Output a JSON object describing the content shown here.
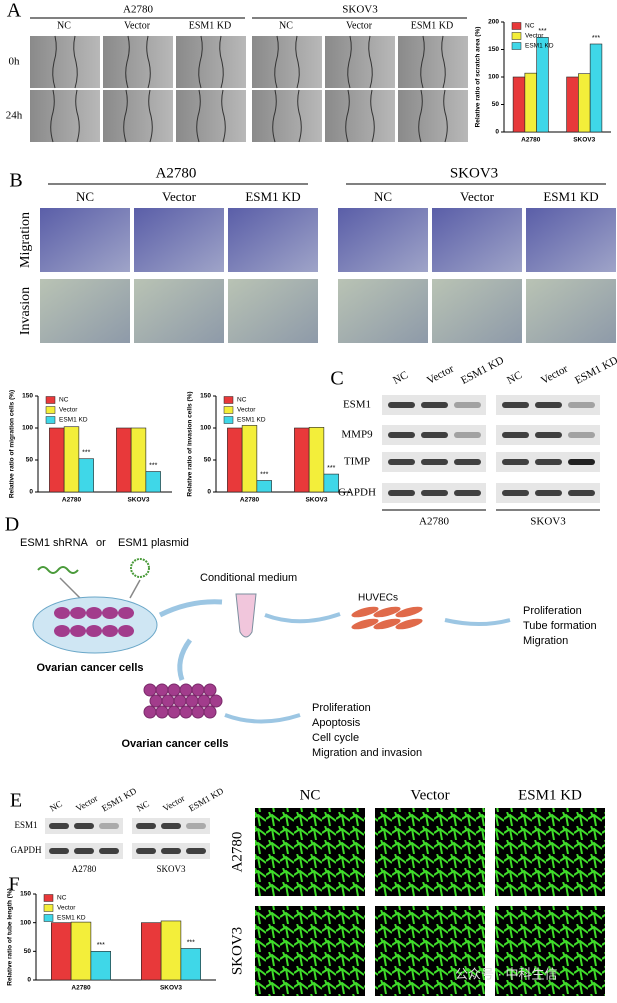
{
  "panels": {
    "a": {
      "label": "A",
      "groups": [
        "A2780",
        "SKOV3"
      ],
      "columns": [
        "NC",
        "Vector",
        "ESM1 KD"
      ],
      "rows": [
        "0h",
        "24h"
      ]
    },
    "b": {
      "label": "B",
      "groups": [
        "A2780",
        "SKOV3"
      ],
      "columns": [
        "NC",
        "Vector",
        "ESM1 KD"
      ],
      "rows": [
        "Migration",
        "Invasion"
      ]
    },
    "c": {
      "label": "C",
      "groups": [
        "A2780",
        "SKOV3"
      ],
      "columns": [
        "NC",
        "Vector",
        "ESM1 KD"
      ],
      "rows": [
        "ESM1",
        "MMP9",
        "TIMP",
        "GAPDH"
      ]
    },
    "d": {
      "label": "D",
      "agent_1": "ESM1 shRNA",
      "agent_join": "or",
      "agent_2": "ESM1 plasmid",
      "medium": "Conditional medium",
      "huvecs": "HUVECs",
      "huvec_effects": [
        "Proliferation",
        "Tube formation",
        "Migration"
      ],
      "cells": "Ovarian cancer cells",
      "cell_effects": [
        "Proliferation",
        "Apoptosis",
        "Cell cycle",
        "Migration and invasion"
      ]
    },
    "e": {
      "label": "E",
      "groups": [
        "A2780",
        "SKOV3"
      ],
      "columns": [
        "NC",
        "Vector",
        "ESM1 KD"
      ],
      "rows": [
        "ESM1",
        "GAPDH"
      ],
      "tube_columns": [
        "NC",
        "Vector",
        "ESM1 KD"
      ],
      "tube_rows": [
        "A2780",
        "SKOV3"
      ]
    },
    "f": {
      "label": "F"
    },
    "watermark": "公众号 · 中科生信"
  },
  "chart_data": [
    {
      "type": "bar",
      "y_label": "Relative ratio of scratch area (%)",
      "categories": [
        "A2780",
        "SKOV3"
      ],
      "series": [
        {
          "name": "NC",
          "color": "#e8393a",
          "values": [
            100,
            100
          ]
        },
        {
          "name": "Vector",
          "color": "#f3ee3a",
          "values": [
            107,
            106
          ]
        },
        {
          "name": "ESM1 KD",
          "color": "#3fd7e8",
          "values": [
            172,
            160
          ]
        }
      ],
      "significance": [
        "***",
        "***"
      ],
      "ylim": [
        0,
        200
      ],
      "yticks": [
        0,
        50,
        100,
        150,
        200
      ]
    },
    {
      "type": "bar",
      "y_label": "Relative ratio of migration cells (%)",
      "categories": [
        "A2780",
        "SKOV3"
      ],
      "series": [
        {
          "name": "NC",
          "color": "#e8393a",
          "values": [
            100,
            100
          ]
        },
        {
          "name": "Vector",
          "color": "#f3ee3a",
          "values": [
            102,
            100
          ]
        },
        {
          "name": "ESM1 KD",
          "color": "#3fd7e8",
          "values": [
            52,
            32
          ]
        }
      ],
      "significance": [
        "***",
        "***"
      ],
      "ylim": [
        0,
        150
      ],
      "yticks": [
        0,
        50,
        100,
        150
      ]
    },
    {
      "type": "bar",
      "y_label": "Relative ratio of invasion cells (%)",
      "categories": [
        "A2780",
        "SKOV3"
      ],
      "series": [
        {
          "name": "NC",
          "color": "#e8393a",
          "values": [
            100,
            100
          ]
        },
        {
          "name": "Vector",
          "color": "#f3ee3a",
          "values": [
            104,
            101
          ]
        },
        {
          "name": "ESM1 KD",
          "color": "#3fd7e8",
          "values": [
            18,
            28
          ]
        }
      ],
      "significance": [
        "***",
        "***"
      ],
      "ylim": [
        0,
        150
      ],
      "yticks": [
        0,
        50,
        100,
        150
      ]
    },
    {
      "type": "bar",
      "y_label": "Relative ratio of tube length (%)",
      "categories": [
        "A2780",
        "SKOV3"
      ],
      "series": [
        {
          "name": "NC",
          "color": "#e8393a",
          "values": [
            100,
            100
          ]
        },
        {
          "name": "Vector",
          "color": "#f3ee3a",
          "values": [
            101,
            103
          ]
        },
        {
          "name": "ESM1 KD",
          "color": "#3fd7e8",
          "values": [
            50,
            55
          ]
        }
      ],
      "significance": [
        "***",
        "***"
      ],
      "ylim": [
        0,
        150
      ],
      "yticks": [
        0,
        50,
        100,
        150
      ]
    }
  ]
}
